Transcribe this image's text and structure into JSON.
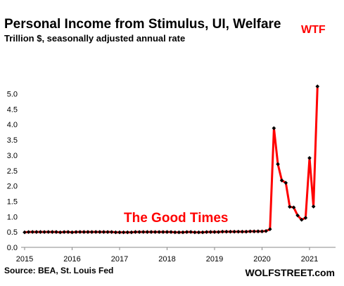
{
  "chart_data": {
    "type": "line",
    "title": "Personal Income from Stimulus, UI, Welfare",
    "subtitle": "Trillion $, seasonally adjusted annual rate",
    "xlabel": "",
    "ylabel": "",
    "ylim": [
      0,
      5.5
    ],
    "xlim": [
      2015,
      2021.25
    ],
    "y_ticks": [
      "0.0",
      "0.5",
      "1.0",
      "1.5",
      "2.0",
      "2.5",
      "3.0",
      "3.5",
      "4.0",
      "4.5",
      "5.0"
    ],
    "x_ticks": [
      "2015",
      "2016",
      "2017",
      "2018",
      "2019",
      "2020",
      "2021"
    ],
    "grid": false,
    "line_color": "#ff0000",
    "marker_color": "#000000",
    "annotations": [
      {
        "text": "The Good Times",
        "color": "#ff0000"
      },
      {
        "text": "WTF",
        "color": "#ff0000"
      }
    ],
    "series": [
      {
        "values": [
          0.49,
          0.5,
          0.5,
          0.5,
          0.5,
          0.5,
          0.5,
          0.5,
          0.5,
          0.49,
          0.5,
          0.5,
          0.49,
          0.5,
          0.5,
          0.5,
          0.5,
          0.5,
          0.5,
          0.5,
          0.5,
          0.5,
          0.5,
          0.49,
          0.49,
          0.49,
          0.49,
          0.49,
          0.5,
          0.5,
          0.5,
          0.5,
          0.5,
          0.5,
          0.5,
          0.5,
          0.5,
          0.5,
          0.49,
          0.49,
          0.49,
          0.5,
          0.5,
          0.49,
          0.49,
          0.49,
          0.5,
          0.5,
          0.5,
          0.5,
          0.51,
          0.51,
          0.51,
          0.51,
          0.51,
          0.51,
          0.51,
          0.52,
          0.52,
          0.52,
          0.52,
          0.53,
          0.59,
          3.88,
          2.71,
          2.18,
          2.1,
          1.32,
          1.3,
          1.04,
          0.9,
          0.96,
          2.91,
          1.33,
          5.24
        ]
      }
    ]
  },
  "footer": {
    "source": "Source: BEA, St. Louis Fed",
    "brand": "WOLFSTREET.com"
  }
}
